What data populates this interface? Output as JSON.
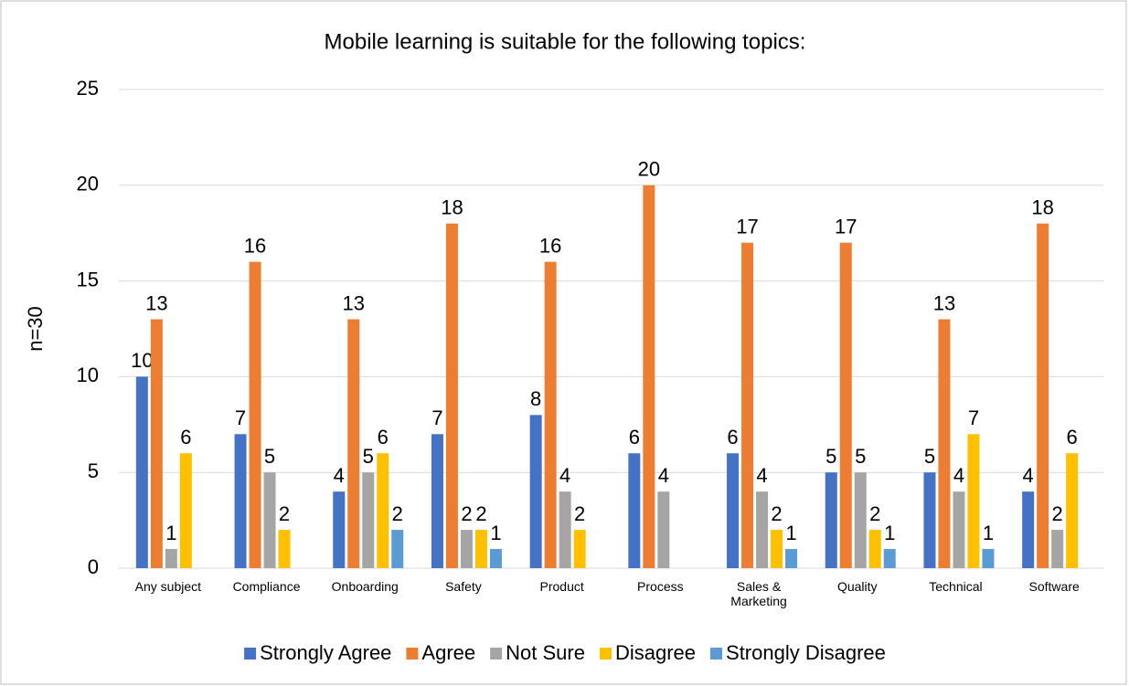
{
  "chart_data": {
    "type": "bar",
    "title": "Mobile learning is suitable for the following topics:",
    "y_label": "n=30",
    "categories": [
      "Any subject",
      "Compliance",
      "Onboarding",
      "Safety",
      "Product",
      "Process",
      "Sales & Marketing",
      "Quality",
      "Technical",
      "Software"
    ],
    "series": [
      {
        "name": "Strongly Agree",
        "color": "#4472c4",
        "values": [
          10,
          7,
          4,
          7,
          8,
          6,
          6,
          5,
          5,
          4
        ]
      },
      {
        "name": "Agree",
        "color": "#ed7d31",
        "values": [
          13,
          16,
          13,
          18,
          16,
          20,
          17,
          17,
          13,
          18
        ]
      },
      {
        "name": "Not Sure",
        "color": "#a5a5a5",
        "values": [
          1,
          5,
          5,
          2,
          4,
          4,
          4,
          5,
          4,
          2
        ]
      },
      {
        "name": "Disagree",
        "color": "#ffc000",
        "values": [
          6,
          2,
          6,
          2,
          2,
          null,
          2,
          2,
          7,
          6
        ]
      },
      {
        "name": "Strongly Disagree",
        "color": "#5b9bd5",
        "values": [
          null,
          null,
          2,
          1,
          null,
          null,
          1,
          1,
          1,
          null
        ]
      }
    ],
    "ylim": [
      0,
      25
    ],
    "yticks": [
      0,
      5,
      10,
      15,
      20,
      25
    ],
    "grid": true,
    "legend": "bottom"
  }
}
